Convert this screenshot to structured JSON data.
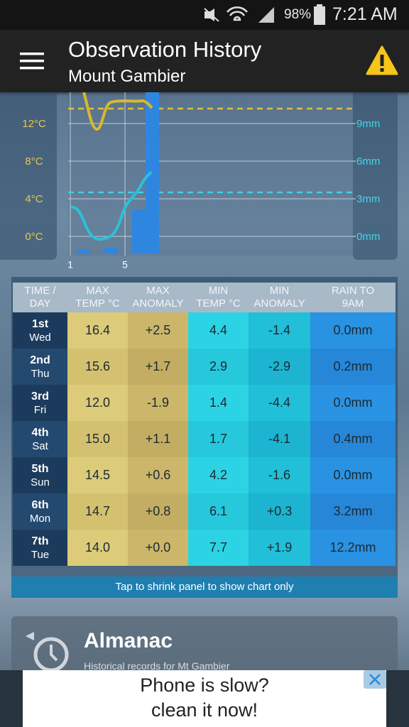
{
  "status_bar": {
    "battery": "98%",
    "time": "7:21 AM"
  },
  "app_bar": {
    "title": "Observation History",
    "subtitle": "Mount Gambier"
  },
  "chart": {
    "yticks": [
      {
        "value": 12,
        "label": "12°C"
      },
      {
        "value": 8,
        "label": "8°C"
      },
      {
        "value": 4,
        "label": "4°C"
      },
      {
        "value": 0,
        "label": "0°C"
      }
    ],
    "y2ticks": [
      {
        "value": 9,
        "label": "9mm"
      },
      {
        "value": 6,
        "label": "6mm"
      },
      {
        "value": 3,
        "label": "3mm"
      },
      {
        "value": 0,
        "label": "0mm"
      }
    ],
    "xticks": [
      1,
      5
    ]
  },
  "table": {
    "headers": [
      [
        "TIME /",
        "DAY"
      ],
      [
        "MAX",
        "TEMP °C"
      ],
      [
        "MAX",
        "ANOMALY"
      ],
      [
        "MIN",
        "TEMP °C"
      ],
      [
        "MIN",
        "ANOMALY"
      ],
      [
        "RAIN TO",
        "9AM"
      ]
    ],
    "rows": [
      {
        "date": "1st",
        "day": "Wed",
        "cells": [
          "16.4",
          "+2.5",
          "4.4",
          "-1.4",
          "0.0mm"
        ]
      },
      {
        "date": "2nd",
        "day": "Thu",
        "cells": [
          "15.6",
          "+1.7",
          "2.9",
          "-2.9",
          "0.2mm"
        ]
      },
      {
        "date": "3rd",
        "day": "Fri",
        "cells": [
          "12.0",
          "-1.9",
          "1.4",
          "-4.4",
          "0.0mm"
        ]
      },
      {
        "date": "4th",
        "day": "Sat",
        "cells": [
          "15.0",
          "+1.1",
          "1.7",
          "-4.1",
          "0.4mm"
        ]
      },
      {
        "date": "5th",
        "day": "Sun",
        "cells": [
          "14.5",
          "+0.6",
          "4.2",
          "-1.6",
          "0.0mm"
        ]
      },
      {
        "date": "6th",
        "day": "Mon",
        "cells": [
          "14.7",
          "+0.8",
          "6.1",
          "+0.3",
          "3.2mm"
        ]
      },
      {
        "date": "7th",
        "day": "Tue",
        "cells": [
          "14.0",
          "+0.0",
          "7.7",
          "+1.9",
          "12.2mm"
        ]
      }
    ],
    "footer": "Tap to shrink panel to show chart only"
  },
  "almanac": {
    "title": "Almanac",
    "subtitle": "Historical records for Mt Gambier"
  },
  "ad": {
    "lines": [
      "Phone is slow?",
      "clean it now!"
    ]
  }
}
